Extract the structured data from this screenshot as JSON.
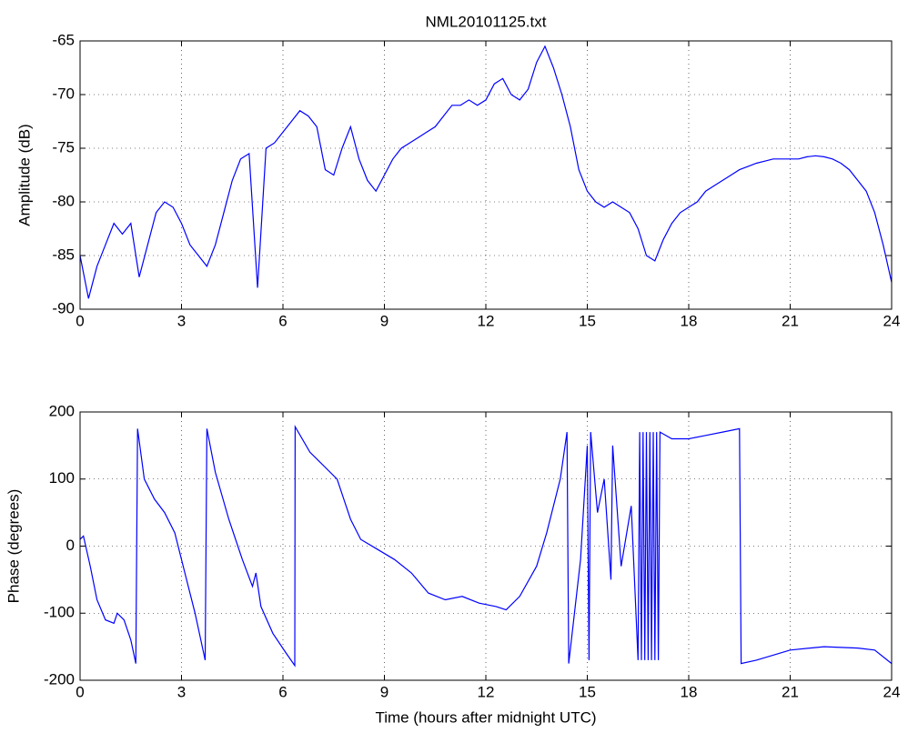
{
  "chart_data": [
    {
      "type": "line",
      "title": "NML20101125.txt",
      "ylabel": "Amplitude (dB)",
      "color": "#0000ff",
      "xlim": [
        0,
        24
      ],
      "xticks": [
        0,
        3,
        6,
        9,
        12,
        15,
        18,
        21,
        24
      ],
      "ylim": [
        -90,
        -65
      ],
      "yticks": [
        -90,
        -85,
        -80,
        -75,
        -70,
        -65
      ],
      "grid": true,
      "x": [
        0,
        0.25,
        0.5,
        0.75,
        1,
        1.25,
        1.5,
        1.75,
        2,
        2.25,
        2.5,
        2.75,
        3,
        3.25,
        3.5,
        3.75,
        4,
        4.25,
        4.5,
        4.75,
        5,
        5.25,
        5.5,
        5.75,
        6,
        6.25,
        6.5,
        6.75,
        7,
        7.25,
        7.5,
        7.75,
        8,
        8.25,
        8.5,
        8.75,
        9,
        9.25,
        9.5,
        9.75,
        10,
        10.25,
        10.5,
        10.75,
        11,
        11.25,
        11.5,
        11.75,
        12,
        12.25,
        12.5,
        12.75,
        13,
        13.25,
        13.5,
        13.75,
        14,
        14.25,
        14.5,
        14.75,
        15,
        15.25,
        15.5,
        15.75,
        16,
        16.25,
        16.5,
        16.75,
        17,
        17.25,
        17.5,
        17.75,
        18,
        18.25,
        18.5,
        18.75,
        19,
        19.25,
        19.5,
        19.75,
        20,
        20.25,
        20.5,
        20.75,
        21,
        21.25,
        21.5,
        21.75,
        22,
        22.25,
        22.5,
        22.75,
        23,
        23.25,
        23.5,
        23.75,
        24
      ],
      "values": [
        -85,
        -89,
        -86,
        -84,
        -82,
        -83,
        -82,
        -87,
        -84,
        -81,
        -80,
        -80.5,
        -82,
        -84,
        -85,
        -86,
        -84,
        -81,
        -78,
        -76,
        -75.5,
        -88,
        -75,
        -74.5,
        -73.5,
        -72.5,
        -71.5,
        -72,
        -73,
        -77,
        -77.5,
        -75,
        -73,
        -76,
        -78,
        -79,
        -77.5,
        -76,
        -75,
        -74.5,
        -74,
        -73.5,
        -73,
        -72,
        -71,
        -71,
        -70.5,
        -71,
        -70.5,
        -69,
        -68.5,
        -70,
        -70.5,
        -69.5,
        -67,
        -65.5,
        -67.5,
        -70,
        -73,
        -77,
        -79,
        -80,
        -80.5,
        -80,
        -80.5,
        -81,
        -82.5,
        -85,
        -85.5,
        -83.5,
        -82,
        -81,
        -80.5,
        -80,
        -79,
        -78.5,
        -78,
        -77.5,
        -77,
        -76.7,
        -76.4,
        -76.2,
        -76,
        -76,
        -76,
        -76,
        -75.8,
        -75.7,
        -75.8,
        -76,
        -76.4,
        -77,
        -78,
        -79,
        -81,
        -84,
        -87.5
      ]
    },
    {
      "type": "line",
      "xlabel": "Time (hours after midnight UTC)",
      "ylabel": "Phase (degrees)",
      "color": "#0000ff",
      "xlim": [
        0,
        24
      ],
      "xticks": [
        0,
        3,
        6,
        9,
        12,
        15,
        18,
        21,
        24
      ],
      "ylim": [
        -200,
        200
      ],
      "yticks": [
        -200,
        -100,
        0,
        100,
        200
      ],
      "grid": true,
      "x": [
        0,
        0.1,
        0.3,
        0.5,
        0.75,
        1,
        1.1,
        1.3,
        1.5,
        1.65,
        1.7,
        1.9,
        2.2,
        2.5,
        2.8,
        3.1,
        3.4,
        3.7,
        3.75,
        4,
        4.4,
        4.8,
        5.1,
        5.2,
        5.35,
        5.7,
        6.1,
        6.35,
        6.36,
        6.8,
        7.2,
        7.6,
        8,
        8.3,
        8.8,
        9.3,
        9.8,
        10.3,
        10.8,
        11.3,
        11.8,
        12.3,
        12.6,
        13,
        13.5,
        13.8,
        14.2,
        14.4,
        14.45,
        14.8,
        15,
        15.05,
        15.1,
        15.3,
        15.5,
        15.7,
        15.75,
        16,
        16.3,
        16.5,
        16.55,
        16.6,
        16.65,
        16.7,
        16.75,
        16.8,
        16.85,
        16.9,
        16.95,
        17,
        17.05,
        17.1,
        17.15,
        17.5,
        18,
        18.5,
        19,
        19.5,
        19.55,
        20,
        21,
        22,
        23,
        23.5,
        24
      ],
      "values": [
        10,
        15,
        -30,
        -80,
        -110,
        -115,
        -100,
        -110,
        -140,
        -175,
        175,
        100,
        70,
        50,
        20,
        -40,
        -100,
        -170,
        175,
        110,
        40,
        -20,
        -60,
        -40,
        -90,
        -130,
        -160,
        -178,
        178,
        140,
        120,
        100,
        40,
        10,
        -5,
        -20,
        -40,
        -70,
        -80,
        -75,
        -85,
        -90,
        -95,
        -75,
        -30,
        20,
        100,
        170,
        -175,
        -20,
        150,
        -170,
        170,
        50,
        100,
        -50,
        150,
        -30,
        60,
        -170,
        170,
        -170,
        170,
        -170,
        170,
        -170,
        170,
        -170,
        170,
        -170,
        170,
        -170,
        170,
        160,
        160,
        165,
        170,
        175,
        -175,
        -170,
        -155,
        -150,
        -152,
        -155,
        -175
      ]
    }
  ]
}
